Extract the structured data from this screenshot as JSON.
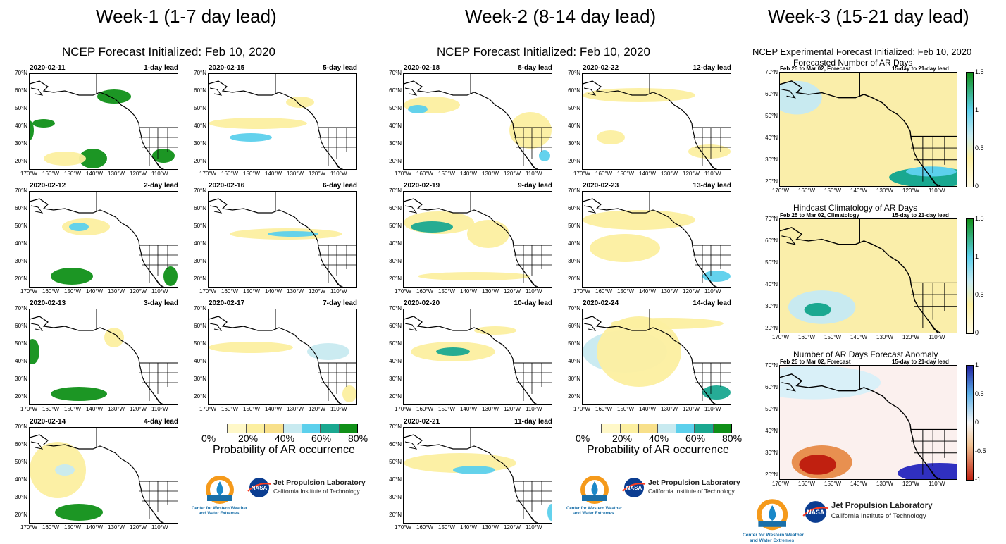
{
  "week1": {
    "title": "Week-1 (1-7 day lead)",
    "init": "NCEP Forecast Initialized: Feb 10, 2020"
  },
  "week2": {
    "title": "Week-2 (8-14 day lead)",
    "init": "NCEP Forecast Initialized: Feb 10, 2020"
  },
  "week3": {
    "title": "Week-3 (15-21 day lead)",
    "init": "NCEP Experimental Forecast Initialized: Feb 10, 2020"
  },
  "panels": [
    {
      "date": "2020-02-11",
      "lead": "1-day lead"
    },
    {
      "date": "2020-02-15",
      "lead": "5-day lead"
    },
    {
      "date": "2020-02-12",
      "lead": "2-day lead"
    },
    {
      "date": "2020-02-16",
      "lead": "6-day lead"
    },
    {
      "date": "2020-02-13",
      "lead": "3-day lead"
    },
    {
      "date": "2020-02-17",
      "lead": "7-day lead"
    },
    {
      "date": "2020-02-14",
      "lead": "4-day lead"
    },
    {
      "date": "2020-02-18",
      "lead": "8-day lead"
    },
    {
      "date": "2020-02-22",
      "lead": "12-day lead"
    },
    {
      "date": "2020-02-19",
      "lead": "9-day lead"
    },
    {
      "date": "2020-02-23",
      "lead": "13-day lead"
    },
    {
      "date": "2020-02-20",
      "lead": "10-day lead"
    },
    {
      "date": "2020-02-24",
      "lead": "14-day lead"
    },
    {
      "date": "2020-02-21",
      "lead": "11-day lead"
    }
  ],
  "lat_ticks": [
    "70°N",
    "60°N",
    "50°N",
    "40°N",
    "30°N",
    "20°N"
  ],
  "lon_ticks": [
    "170°W",
    "160°W",
    "150°W",
    "140°W",
    "130°W",
    "120°W",
    "110°W"
  ],
  "legend": {
    "ticks": [
      "0%",
      "20%",
      "40%",
      "60%",
      "80%"
    ],
    "title": "Probability of AR occurrence",
    "colors": [
      "#ffffff",
      "#fff8c8",
      "#fcefa0",
      "#f8e08a",
      "#c8eaf0",
      "#5cd0ec",
      "#1aa890",
      "#109018"
    ]
  },
  "week3_panels": [
    {
      "title": "Forecasted Number of AR Days",
      "left": "Feb 25 to Mar 02, Forecast",
      "right": "15-day to 21-day lead",
      "cbar": [
        "1.5",
        "1",
        "0.5",
        "0"
      ]
    },
    {
      "title": "Hindcast Climatology of AR Days",
      "left": "Feb 25 to Mar 02, Climatology",
      "right": "15-day to 21-day lead",
      "cbar": [
        "1.5",
        "1",
        "0.5",
        "0"
      ]
    },
    {
      "title": "Number of AR Days Forecast Anomaly",
      "left": "Feb 25 to Mar 02, Forecast",
      "right": "15-day to 21-day lead",
      "cbar": [
        "1",
        "0.5",
        "0",
        "-0.5",
        "-1"
      ]
    }
  ],
  "logos": {
    "cw3e_line1": "Center for Western Weather",
    "cw3e_line2": "and Water Extremes",
    "nasa": "NASA",
    "jpl_title": "Jet Propulsion Laboratory",
    "jpl_sub": "California Institute of Technology"
  }
}
